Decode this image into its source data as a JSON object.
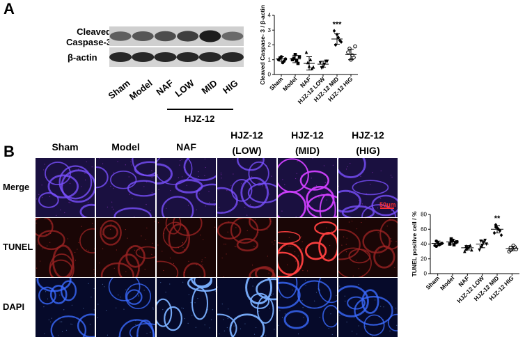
{
  "panelA": {
    "letter": "A",
    "blot": {
      "label_cleaved_1": "Cleaved",
      "label_cleaved_2": "Caspase-3",
      "label_actin": "β-actin",
      "lanes": [
        "Sham",
        "Model",
        "NAF",
        "LOW",
        "MID",
        "HIG"
      ],
      "group_label": "HJZ-12",
      "cleaved_intensity": [
        0.55,
        0.6,
        0.65,
        0.72,
        0.9,
        0.5
      ],
      "actin_intensity": [
        0.85,
        0.85,
        0.85,
        0.85,
        0.85,
        0.85
      ]
    },
    "chart_data": {
      "type": "scatter",
      "ylabel": "Cleaved Caspase- 3 / β-actin",
      "ylim": [
        0,
        4
      ],
      "yticks": [
        0,
        1,
        2,
        3,
        4
      ],
      "categories": [
        "Sham",
        "Model",
        "NAF",
        "HJZ-12 LOW",
        "HJZ-12 MID",
        "HJZ-12 HIG"
      ],
      "markers": [
        "circle-filled",
        "square-filled",
        "triangle-filled",
        "triangle-down-filled",
        "diamond-filled",
        "circle-open"
      ],
      "points": [
        [
          1.0,
          1.2,
          0.9,
          1.1,
          0.8,
          1.05
        ],
        [
          1.0,
          1.35,
          0.75,
          1.1,
          0.95,
          1.2
        ],
        [
          1.5,
          0.55,
          0.4,
          0.8,
          1.0,
          0.5
        ],
        [
          0.8,
          0.5,
          0.9,
          0.45,
          0.7,
          0.9
        ],
        [
          2.95,
          2.7,
          2.3,
          2.0,
          2.5,
          2.2
        ],
        [
          1.5,
          1.0,
          1.15,
          1.75,
          1.3,
          1.9
        ]
      ],
      "means": [
        1.05,
        1.05,
        0.75,
        0.7,
        2.4,
        1.35
      ],
      "sd": [
        0.15,
        0.25,
        0.45,
        0.2,
        0.35,
        0.35
      ],
      "annotations": [
        {
          "category": "HJZ-12 MID",
          "text": "***"
        }
      ]
    }
  },
  "panelB": {
    "letter": "B",
    "columns": [
      {
        "line1": "Sham",
        "line2": ""
      },
      {
        "line1": "Model",
        "line2": ""
      },
      {
        "line1": "NAF",
        "line2": ""
      },
      {
        "line1": "HJZ-12",
        "line2": "(LOW)"
      },
      {
        "line1": "HJZ-12",
        "line2": "(MID)"
      },
      {
        "line1": "HJZ-12",
        "line2": "(HIG)"
      }
    ],
    "rows": [
      "Merge",
      "TUNEL",
      "DAPI"
    ],
    "scale_bar": "50μm",
    "chart_data": {
      "type": "scatter",
      "ylabel": "TUNEL positive cell / %",
      "ylim": [
        0,
        80
      ],
      "yticks": [
        0,
        20,
        40,
        60,
        80
      ],
      "categories": [
        "Sham",
        "Model",
        "NAF",
        "HJZ-12 LOW",
        "HJZ-12 MID",
        "HJZ-12 HIG"
      ],
      "markers": [
        "circle-filled",
        "square-filled",
        "triangle-filled",
        "triangle-down-filled",
        "diamond-filled",
        "circle-open"
      ],
      "points": [
        [
          38,
          42,
          40,
          44,
          39,
          41,
          37
        ],
        [
          40,
          45,
          42,
          47,
          39,
          43,
          44
        ],
        [
          30,
          35,
          38,
          33,
          36,
          32,
          37
        ],
        [
          32,
          38,
          45,
          36,
          42,
          40,
          44
        ],
        [
          55,
          62,
          58,
          66,
          60,
          52,
          63
        ],
        [
          30,
          34,
          36,
          32,
          38,
          33,
          35
        ]
      ],
      "means": [
        41,
        43,
        35,
        40,
        60,
        34
      ],
      "sd": [
        3,
        3,
        3,
        5,
        5,
        3
      ],
      "annotations": [
        {
          "category": "HJZ-12 MID",
          "text": "**"
        }
      ]
    }
  }
}
